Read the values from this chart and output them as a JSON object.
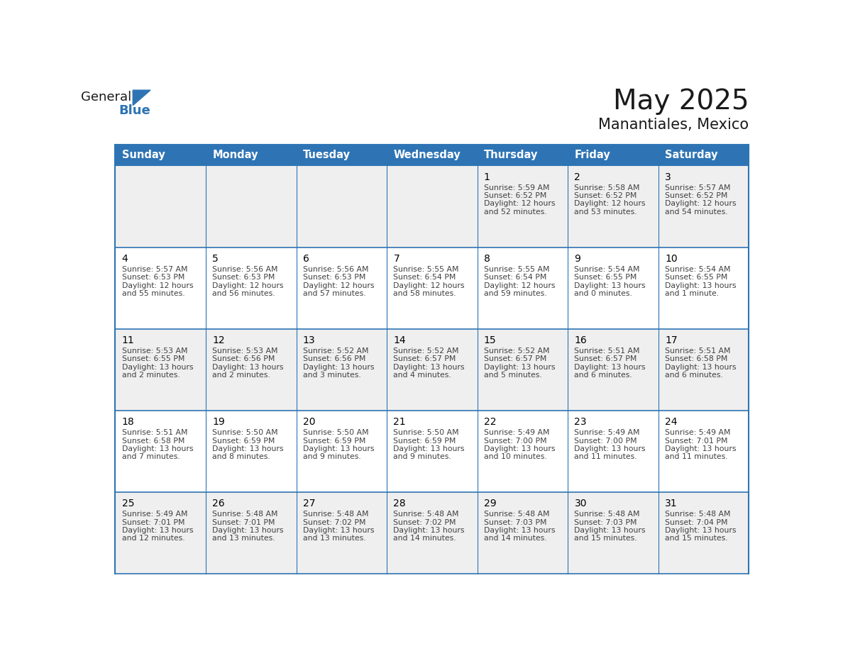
{
  "title": "May 2025",
  "subtitle": "Manantiales, Mexico",
  "header_bg": "#2E74B5",
  "header_text_color": "#FFFFFF",
  "day_names": [
    "Sunday",
    "Monday",
    "Tuesday",
    "Wednesday",
    "Thursday",
    "Friday",
    "Saturday"
  ],
  "cell_bg_odd": "#EFEFEF",
  "cell_bg_even": "#FFFFFF",
  "cell_border_color": "#2E74B5",
  "date_color": "#000000",
  "text_color": "#404040",
  "title_color": "#1a1a1a",
  "logo_general_color": "#1a1a1a",
  "logo_blue_color": "#2E74B5",
  "weeks": [
    [
      null,
      null,
      null,
      null,
      {
        "day": 1,
        "sunrise": "5:59 AM",
        "sunset": "6:52 PM",
        "daylight_hours": "12",
        "daylight_mins": "52 minutes"
      },
      {
        "day": 2,
        "sunrise": "5:58 AM",
        "sunset": "6:52 PM",
        "daylight_hours": "12",
        "daylight_mins": "53 minutes"
      },
      {
        "day": 3,
        "sunrise": "5:57 AM",
        "sunset": "6:52 PM",
        "daylight_hours": "12",
        "daylight_mins": "54 minutes"
      }
    ],
    [
      {
        "day": 4,
        "sunrise": "5:57 AM",
        "sunset": "6:53 PM",
        "daylight_hours": "12",
        "daylight_mins": "55 minutes"
      },
      {
        "day": 5,
        "sunrise": "5:56 AM",
        "sunset": "6:53 PM",
        "daylight_hours": "12",
        "daylight_mins": "56 minutes"
      },
      {
        "day": 6,
        "sunrise": "5:56 AM",
        "sunset": "6:53 PM",
        "daylight_hours": "12",
        "daylight_mins": "57 minutes"
      },
      {
        "day": 7,
        "sunrise": "5:55 AM",
        "sunset": "6:54 PM",
        "daylight_hours": "12",
        "daylight_mins": "58 minutes"
      },
      {
        "day": 8,
        "sunrise": "5:55 AM",
        "sunset": "6:54 PM",
        "daylight_hours": "12",
        "daylight_mins": "59 minutes"
      },
      {
        "day": 9,
        "sunrise": "5:54 AM",
        "sunset": "6:55 PM",
        "daylight_hours": "13",
        "daylight_mins": "0 minutes"
      },
      {
        "day": 10,
        "sunrise": "5:54 AM",
        "sunset": "6:55 PM",
        "daylight_hours": "13",
        "daylight_mins": "1 minute"
      }
    ],
    [
      {
        "day": 11,
        "sunrise": "5:53 AM",
        "sunset": "6:55 PM",
        "daylight_hours": "13",
        "daylight_mins": "2 minutes"
      },
      {
        "day": 12,
        "sunrise": "5:53 AM",
        "sunset": "6:56 PM",
        "daylight_hours": "13",
        "daylight_mins": "2 minutes"
      },
      {
        "day": 13,
        "sunrise": "5:52 AM",
        "sunset": "6:56 PM",
        "daylight_hours": "13",
        "daylight_mins": "3 minutes"
      },
      {
        "day": 14,
        "sunrise": "5:52 AM",
        "sunset": "6:57 PM",
        "daylight_hours": "13",
        "daylight_mins": "4 minutes"
      },
      {
        "day": 15,
        "sunrise": "5:52 AM",
        "sunset": "6:57 PM",
        "daylight_hours": "13",
        "daylight_mins": "5 minutes"
      },
      {
        "day": 16,
        "sunrise": "5:51 AM",
        "sunset": "6:57 PM",
        "daylight_hours": "13",
        "daylight_mins": "6 minutes"
      },
      {
        "day": 17,
        "sunrise": "5:51 AM",
        "sunset": "6:58 PM",
        "daylight_hours": "13",
        "daylight_mins": "6 minutes"
      }
    ],
    [
      {
        "day": 18,
        "sunrise": "5:51 AM",
        "sunset": "6:58 PM",
        "daylight_hours": "13",
        "daylight_mins": "7 minutes"
      },
      {
        "day": 19,
        "sunrise": "5:50 AM",
        "sunset": "6:59 PM",
        "daylight_hours": "13",
        "daylight_mins": "8 minutes"
      },
      {
        "day": 20,
        "sunrise": "5:50 AM",
        "sunset": "6:59 PM",
        "daylight_hours": "13",
        "daylight_mins": "9 minutes"
      },
      {
        "day": 21,
        "sunrise": "5:50 AM",
        "sunset": "6:59 PM",
        "daylight_hours": "13",
        "daylight_mins": "9 minutes"
      },
      {
        "day": 22,
        "sunrise": "5:49 AM",
        "sunset": "7:00 PM",
        "daylight_hours": "13",
        "daylight_mins": "10 minutes"
      },
      {
        "day": 23,
        "sunrise": "5:49 AM",
        "sunset": "7:00 PM",
        "daylight_hours": "13",
        "daylight_mins": "11 minutes"
      },
      {
        "day": 24,
        "sunrise": "5:49 AM",
        "sunset": "7:01 PM",
        "daylight_hours": "13",
        "daylight_mins": "11 minutes"
      }
    ],
    [
      {
        "day": 25,
        "sunrise": "5:49 AM",
        "sunset": "7:01 PM",
        "daylight_hours": "13",
        "daylight_mins": "12 minutes"
      },
      {
        "day": 26,
        "sunrise": "5:48 AM",
        "sunset": "7:01 PM",
        "daylight_hours": "13",
        "daylight_mins": "13 minutes"
      },
      {
        "day": 27,
        "sunrise": "5:48 AM",
        "sunset": "7:02 PM",
        "daylight_hours": "13",
        "daylight_mins": "13 minutes"
      },
      {
        "day": 28,
        "sunrise": "5:48 AM",
        "sunset": "7:02 PM",
        "daylight_hours": "13",
        "daylight_mins": "14 minutes"
      },
      {
        "day": 29,
        "sunrise": "5:48 AM",
        "sunset": "7:03 PM",
        "daylight_hours": "13",
        "daylight_mins": "14 minutes"
      },
      {
        "day": 30,
        "sunrise": "5:48 AM",
        "sunset": "7:03 PM",
        "daylight_hours": "13",
        "daylight_mins": "15 minutes"
      },
      {
        "day": 31,
        "sunrise": "5:48 AM",
        "sunset": "7:04 PM",
        "daylight_hours": "13",
        "daylight_mins": "15 minutes"
      }
    ]
  ]
}
